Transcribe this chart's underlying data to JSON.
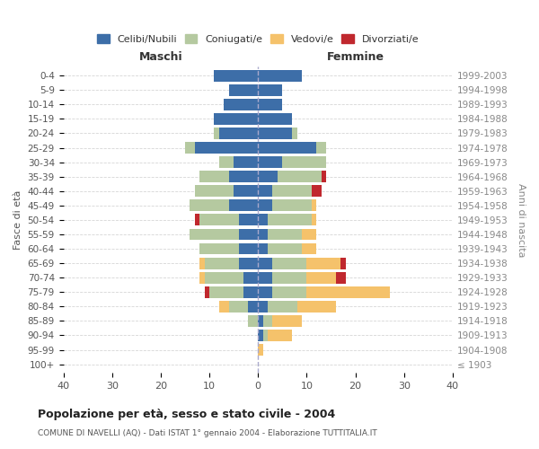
{
  "age_groups": [
    "100+",
    "95-99",
    "90-94",
    "85-89",
    "80-84",
    "75-79",
    "70-74",
    "65-69",
    "60-64",
    "55-59",
    "50-54",
    "45-49",
    "40-44",
    "35-39",
    "30-34",
    "25-29",
    "20-24",
    "15-19",
    "10-14",
    "5-9",
    "0-4"
  ],
  "birth_years": [
    "≤ 1903",
    "1904-1908",
    "1909-1913",
    "1914-1918",
    "1919-1923",
    "1924-1928",
    "1929-1933",
    "1934-1938",
    "1939-1943",
    "1944-1948",
    "1949-1953",
    "1954-1958",
    "1959-1963",
    "1964-1968",
    "1969-1973",
    "1974-1978",
    "1979-1983",
    "1984-1988",
    "1989-1993",
    "1994-1998",
    "1999-2003"
  ],
  "maschi": {
    "celibi": [
      0,
      0,
      0,
      0,
      2,
      3,
      3,
      4,
      4,
      4,
      4,
      6,
      5,
      6,
      5,
      13,
      8,
      9,
      7,
      6,
      9
    ],
    "coniugati": [
      0,
      0,
      0,
      2,
      4,
      7,
      8,
      7,
      8,
      10,
      8,
      8,
      8,
      6,
      3,
      2,
      1,
      0,
      0,
      0,
      0
    ],
    "vedovi": [
      0,
      0,
      0,
      0,
      2,
      0,
      1,
      1,
      0,
      0,
      0,
      0,
      0,
      0,
      0,
      0,
      0,
      0,
      0,
      0,
      0
    ],
    "divorziati": [
      0,
      0,
      0,
      0,
      0,
      1,
      0,
      0,
      0,
      0,
      1,
      0,
      0,
      0,
      0,
      0,
      0,
      0,
      0,
      0,
      0
    ]
  },
  "femmine": {
    "nubili": [
      0,
      0,
      1,
      1,
      2,
      3,
      3,
      3,
      2,
      2,
      2,
      3,
      3,
      4,
      5,
      12,
      7,
      7,
      5,
      5,
      9
    ],
    "coniugate": [
      0,
      0,
      1,
      2,
      6,
      7,
      7,
      7,
      7,
      7,
      9,
      8,
      8,
      9,
      9,
      2,
      1,
      0,
      0,
      0,
      0
    ],
    "vedove": [
      0,
      1,
      5,
      6,
      8,
      17,
      6,
      7,
      3,
      3,
      1,
      1,
      0,
      0,
      0,
      0,
      0,
      0,
      0,
      0,
      0
    ],
    "divorziate": [
      0,
      0,
      0,
      0,
      0,
      0,
      2,
      1,
      0,
      0,
      0,
      0,
      2,
      1,
      0,
      0,
      0,
      0,
      0,
      0,
      0
    ]
  },
  "colors": {
    "celibi_nubili": "#3d6ea8",
    "coniugati": "#b5c9a0",
    "vedovi": "#f5c26b",
    "divorziati": "#c0282e"
  },
  "title": "Popolazione per età, sesso e stato civile - 2004",
  "subtitle": "COMUNE DI NAVELLI (AQ) - Dati ISTAT 1° gennaio 2004 - Elaborazione TUTTITALIA.IT",
  "xlabel_left": "Maschi",
  "xlabel_right": "Femmine",
  "ylabel_left": "Fasce di età",
  "ylabel_right": "Anni di nascita",
  "xlim": 40,
  "legend_labels": [
    "Celibi/Nubili",
    "Coniugati/e",
    "Vedovi/e",
    "Divorziati/e"
  ],
  "background_color": "#ffffff",
  "grid_color": "#cccccc"
}
